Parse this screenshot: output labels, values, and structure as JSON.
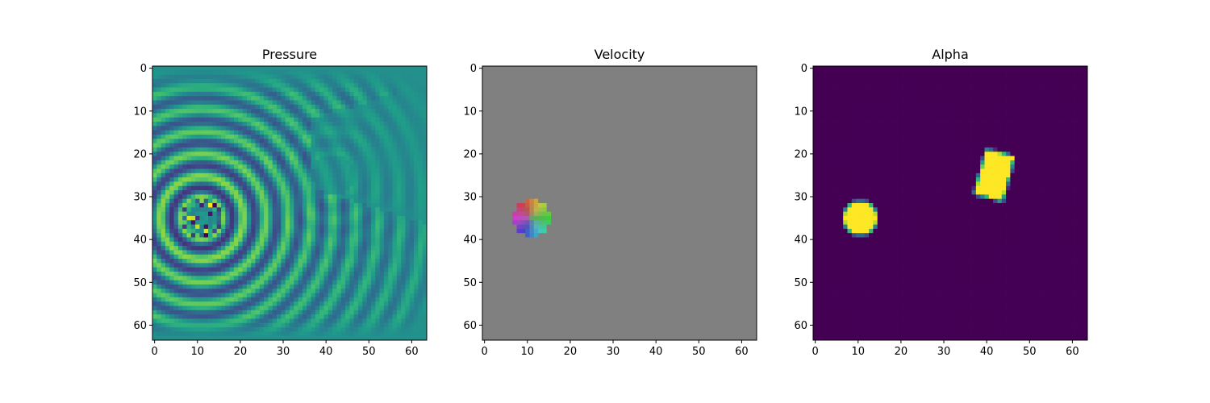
{
  "chart_data": [
    {
      "type": "heatmap",
      "title": "Pressure",
      "grid_size": 64,
      "xlim": [
        -0.5,
        63.5
      ],
      "ylim": [
        63.5,
        -0.5
      ],
      "xticks": [
        0,
        10,
        20,
        30,
        40,
        50,
        60
      ],
      "yticks": [
        0,
        10,
        20,
        30,
        40,
        50,
        60
      ],
      "colormap": "viridis",
      "description_points": {
        "source_center": [
          11,
          35
        ],
        "rings": "concentric pressure waves expanding from source, with reflection from rectangular obstacle near (42, 25)"
      }
    },
    {
      "type": "heatmap",
      "title": "Velocity",
      "grid_size": 64,
      "xlim": [
        -0.5,
        63.5
      ],
      "ylim": [
        63.5,
        -0.5
      ],
      "xticks": [
        0,
        10,
        20,
        30,
        40,
        50,
        60
      ],
      "yticks": [
        0,
        10,
        20,
        30,
        40,
        50,
        60
      ],
      "background_color": "#808080",
      "disk_center": [
        11,
        35
      ],
      "disk_radius": 4.3
    },
    {
      "type": "heatmap",
      "title": "Alpha",
      "grid_size": 64,
      "xlim": [
        -0.5,
        63.5
      ],
      "ylim": [
        63.5,
        -0.5
      ],
      "xticks": [
        0,
        10,
        20,
        30,
        40,
        50,
        60
      ],
      "yticks": [
        0,
        10,
        20,
        30,
        40,
        50,
        60
      ],
      "colormap": "viridis",
      "background_value": 0,
      "objects": [
        {
          "shape": "circle",
          "center": [
            10.5,
            35
          ],
          "radius": 4.0,
          "value": 1
        },
        {
          "shape": "rectangle",
          "center": [
            41.8,
            25
          ],
          "width": 7,
          "height": 11,
          "rotation_deg": 15,
          "value": 1
        }
      ]
    }
  ],
  "colors": {
    "viridis_low": "#440154",
    "viridis_mid": "#21918c",
    "viridis_high": "#fde725",
    "velocity_bg": "#808080"
  }
}
